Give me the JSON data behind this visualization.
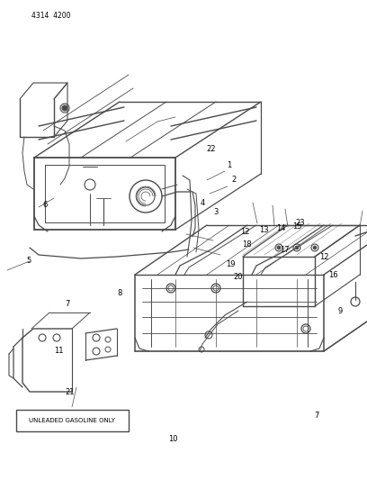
{
  "bg_color": "#ffffff",
  "line_color": "#4a4a4a",
  "label_color": "#000000",
  "fig_width": 4.08,
  "fig_height": 5.33,
  "dpi": 100,
  "header_text": "4314  4200",
  "box_label": "UNLEADED GASOLINE ONLY"
}
